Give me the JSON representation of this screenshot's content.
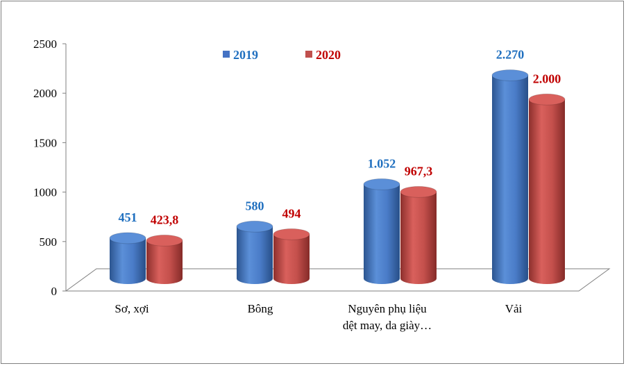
{
  "chart_data": {
    "type": "bar",
    "categories": [
      "Sơ, xợi",
      "Bông",
      "Nguyên phụ liệu dệt may, da giày…",
      "Vải"
    ],
    "category_lines": [
      [
        "Sơ, xợi"
      ],
      [
        "Bông"
      ],
      [
        "Nguyên phụ liệu",
        "dệt may, da giày…"
      ],
      [
        "Vải"
      ]
    ],
    "series": [
      {
        "name": "2019",
        "values": [
          451,
          580,
          1052,
          2270
        ],
        "labels": [
          "451",
          "580",
          "1.052",
          "2.270"
        ],
        "color": "#4472c4"
      },
      {
        "name": "2020",
        "values": [
          423.8,
          494,
          967.3,
          2000
        ],
        "labels": [
          "423,8",
          "494",
          "967,3",
          "2.000"
        ],
        "color": "#c0504d"
      }
    ],
    "y_ticks": [
      "0",
      "500",
      "1000",
      "1500",
      "2000",
      "2500"
    ],
    "ylim": [
      0,
      2500
    ],
    "legend_position": "top",
    "label_colors": {
      "2019": "#1f6fbf",
      "2020": "#c00000"
    },
    "style": "3d-cylinder"
  }
}
